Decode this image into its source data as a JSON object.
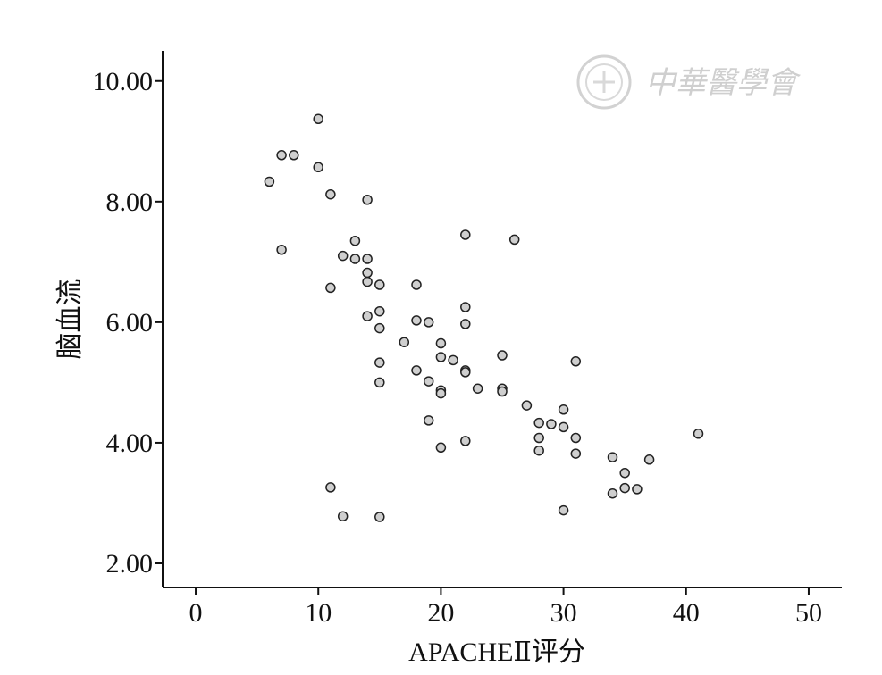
{
  "chart_data": {
    "type": "scatter",
    "xlabel": "APACHEⅡ评分",
    "ylabel": "脑血流",
    "xlim": [
      -2.7,
      52.7
    ],
    "ylim": [
      1.6,
      10.5
    ],
    "x_ticks": [
      0,
      10,
      20,
      30,
      40,
      50
    ],
    "y_ticks": [
      2.0,
      4.0,
      6.0,
      8.0,
      10.0
    ],
    "x_tick_labels": [
      "0",
      "10",
      "20",
      "30",
      "40",
      "50"
    ],
    "y_tick_labels": [
      "2.00",
      "4.00",
      "6.00",
      "8.00",
      "10.00"
    ],
    "grid": false,
    "marker_fill": "#cfcfcf",
    "marker_stroke": "#222222",
    "points": [
      [
        10,
        9.37
      ],
      [
        7,
        8.77
      ],
      [
        8,
        8.77
      ],
      [
        10,
        8.57
      ],
      [
        6,
        8.33
      ],
      [
        11,
        8.12
      ],
      [
        14,
        8.03
      ],
      [
        7,
        7.2
      ],
      [
        13,
        7.35
      ],
      [
        12,
        7.1
      ],
      [
        13,
        7.05
      ],
      [
        14,
        7.05
      ],
      [
        22,
        7.45
      ],
      [
        26,
        7.37
      ],
      [
        14,
        6.82
      ],
      [
        14,
        6.67
      ],
      [
        11,
        6.57
      ],
      [
        15,
        6.62
      ],
      [
        18,
        6.62
      ],
      [
        15,
        6.18
      ],
      [
        14,
        6.1
      ],
      [
        18,
        6.03
      ],
      [
        19,
        6.0
      ],
      [
        22,
        6.25
      ],
      [
        22,
        5.97
      ],
      [
        15,
        5.9
      ],
      [
        17,
        5.67
      ],
      [
        20,
        5.65
      ],
      [
        20,
        5.42
      ],
      [
        21,
        5.37
      ],
      [
        25,
        5.45
      ],
      [
        31,
        5.35
      ],
      [
        15,
        5.33
      ],
      [
        18,
        5.2
      ],
      [
        22,
        5.2
      ],
      [
        22,
        5.17
      ],
      [
        15,
        5.0
      ],
      [
        19,
        5.02
      ],
      [
        20,
        4.87
      ],
      [
        20,
        4.82
      ],
      [
        23,
        4.9
      ],
      [
        25,
        4.9
      ],
      [
        25,
        4.85
      ],
      [
        27,
        4.62
      ],
      [
        30,
        4.55
      ],
      [
        28,
        4.33
      ],
      [
        29,
        4.31
      ],
      [
        30,
        4.26
      ],
      [
        41,
        4.15
      ],
      [
        19,
        4.37
      ],
      [
        28,
        4.08
      ],
      [
        31,
        4.08
      ],
      [
        22,
        4.03
      ],
      [
        20,
        3.92
      ],
      [
        28,
        3.87
      ],
      [
        31,
        3.82
      ],
      [
        34,
        3.76
      ],
      [
        37,
        3.72
      ],
      [
        35,
        3.5
      ],
      [
        35,
        3.25
      ],
      [
        36,
        3.23
      ],
      [
        34,
        3.16
      ],
      [
        11,
        3.26
      ],
      [
        30,
        2.88
      ],
      [
        12,
        2.78
      ],
      [
        15,
        2.77
      ]
    ]
  },
  "watermark": {
    "text": "中華醫學會",
    "color": "#cfcfcf"
  }
}
